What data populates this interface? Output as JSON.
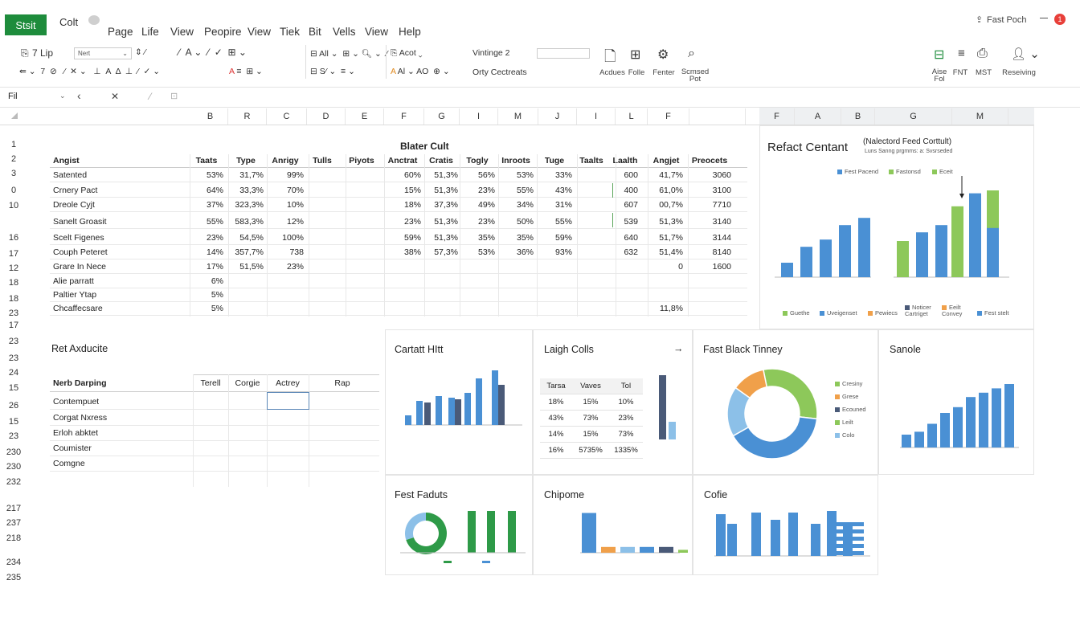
{
  "app": {
    "button": "Stsit",
    "title": "Colt"
  },
  "menu": [
    "Page",
    "Life",
    "View",
    "Peopire",
    "View",
    "Tiek",
    "Bit",
    "Vells",
    "View",
    "Help"
  ],
  "topright": {
    "label": "Fast Poch",
    "badge": "1"
  },
  "ribbon": {
    "row1": [
      "7 Lip",
      "Nert",
      "All",
      "Acot",
      "Vintinge 2"
    ],
    "row2": [
      "Orty Cectreats"
    ],
    "groups": [
      "Acdues",
      "Folle",
      "Fenter",
      "Scmsed Pot"
    ],
    "right_groups": [
      "Aise Fol",
      "FNT",
      "MST",
      "Reseiving"
    ]
  },
  "namebox": "Fil",
  "cols1": [
    "B",
    "R",
    "C",
    "D",
    "E",
    "F",
    "G",
    "I",
    "M",
    "J",
    "I",
    "L",
    "F"
  ],
  "cols2": [
    "F",
    "A",
    "B",
    "G",
    "M"
  ],
  "rows": [
    "1",
    "2",
    "3",
    "0",
    "10",
    "16",
    "17",
    "12",
    "18",
    "18",
    "23",
    "17",
    "23",
    "23",
    "24",
    "15",
    "26",
    "15",
    "23",
    "230",
    "230",
    "232",
    "217",
    "237",
    "218",
    "234",
    "235"
  ],
  "table1": {
    "title": "Blater Cult",
    "headers": [
      "Angist",
      "Taats",
      "Type",
      "Anrigy",
      "Tulls",
      "Piyots",
      "Anctrat",
      "Cratis",
      "Togly",
      "Inroots",
      "Tuge",
      "Taalts",
      "Laalth",
      "Angjet",
      "Preocets"
    ],
    "rows": [
      [
        "Satented",
        "53%",
        "31,7%",
        "99%",
        "",
        "",
        "60%",
        "51,3%",
        "56%",
        "53%",
        "33%",
        "",
        "600",
        "41,7%",
        "3060"
      ],
      [
        "Crnery Pact",
        "64%",
        "33,3%",
        "70%",
        "",
        "",
        "15%",
        "51,3%",
        "23%",
        "55%",
        "43%",
        "",
        "400",
        "61,0%",
        "3100"
      ],
      [
        "Dreole Cyjt",
        "37%",
        "323,3%",
        "10%",
        "",
        "",
        "18%",
        "37,3%",
        "49%",
        "34%",
        "31%",
        "",
        "607",
        "00,7%",
        "7710"
      ],
      [
        "Sanelt Groasit",
        "55%",
        "583,3%",
        "12%",
        "",
        "",
        "23%",
        "51,3%",
        "23%",
        "50%",
        "55%",
        "",
        "539",
        "51,3%",
        "3140"
      ],
      [
        "Scelt Figenes",
        "23%",
        "54,5%",
        "100%",
        "",
        "",
        "59%",
        "51,3%",
        "35%",
        "35%",
        "59%",
        "",
        "640",
        "51,7%",
        "3144"
      ],
      [
        "Couph Peteret",
        "14%",
        "357,7%",
        "738",
        "",
        "",
        "38%",
        "57,3%",
        "53%",
        "36%",
        "93%",
        "",
        "632",
        "51,4%",
        "8140"
      ],
      [
        "Grare In Nece",
        "17%",
        "51,5%",
        "23%",
        "",
        "",
        "",
        "",
        "",
        "",
        "",
        "",
        "",
        "0",
        "1600"
      ],
      [
        "Alie parratt",
        "6%",
        "",
        "",
        "",
        "",
        "",
        "",
        "",
        "",
        "",
        "",
        "",
        "",
        ""
      ],
      [
        "Paltier Ytap",
        "5%",
        "",
        "",
        "",
        "",
        "",
        "",
        "",
        "",
        "",
        "",
        "",
        "",
        ""
      ],
      [
        "Chcaffecsare",
        "5%",
        "",
        "",
        "",
        "",
        "",
        "",
        "",
        "",
        "",
        "",
        "",
        "11,8%",
        ""
      ]
    ]
  },
  "table2": {
    "title": "Ret Axducite",
    "headers": [
      "Nerb Darping",
      "Terell",
      "Corgie",
      "Actrey",
      "Rap"
    ],
    "rows": [
      "Contempuet",
      "Corgat Nxress",
      "Erloh abktet",
      "Coumister",
      "Comgne"
    ]
  },
  "panels": {
    "p1": {
      "title": "Refact Centant",
      "subtitle": "(Nalectord Feed Corttult)",
      "sub2": "Luns Sanng prgmms: a: Svsrseded",
      "legend": [
        "Fest Pacend",
        "Fastonsd",
        "Eceit"
      ],
      "bottom_legend": [
        "Guethe",
        "Uveigenset",
        "Pewiecs",
        "Noticer Cartriget",
        "Eeilt Convey",
        "Fest stelt"
      ]
    },
    "p2": {
      "title": "Cartatt HItt"
    },
    "p3": {
      "title": "Laigh Colls",
      "arrow": "→",
      "table": [
        [
          "Tarsa",
          "Vaves",
          "Tol"
        ],
        [
          "18%",
          "15%",
          "10%"
        ],
        [
          "43%",
          "73%",
          "23%"
        ],
        [
          "14%",
          "15%",
          "73%"
        ],
        [
          "16%",
          "5735%",
          "1335%"
        ]
      ]
    },
    "p4": {
      "title": "Fast Black Tinney",
      "legend": [
        "Cresiny",
        "Grese",
        "Ecouned",
        "Leilt",
        "Colo"
      ]
    },
    "p5": {
      "title": "Sanole"
    },
    "p6": {
      "title": "Fest Faduts"
    },
    "p7": {
      "title": "Chipome"
    },
    "p8": {
      "title": "Cofie"
    }
  },
  "colors": {
    "blue": "#4a90d4",
    "green": "#8dc85a",
    "dark": "#4a5a78",
    "orange": "#f0a04a",
    "lightblue": "#8cc0e8",
    "excel_green": "#1e8c3c",
    "darkgreen": "#2e9a48"
  },
  "chart_data": [
    {
      "type": "bar",
      "title": "Refact Centant",
      "series": [
        {
          "name": "Fest Pacend",
          "values": [
            20,
            42,
            52,
            72,
            82,
            50,
            62,
            72,
            100,
            116,
            120
          ]
        },
        {
          "name": "Fastonsd",
          "values": [
            0,
            0,
            0,
            0,
            0,
            42,
            0,
            0,
            0,
            0,
            0
          ]
        },
        {
          "name": "Eceit",
          "values": [
            0,
            0,
            0,
            0,
            0,
            0,
            0,
            0,
            98,
            0,
            68
          ]
        }
      ]
    },
    {
      "type": "bar",
      "title": "Cartatt HItt",
      "series": [
        {
          "values": [
            12,
            30,
            28,
            36,
            34,
            32,
            40,
            58,
            68,
            50
          ]
        },
        {
          "values": [
            0,
            28,
            0,
            0,
            34,
            0,
            0,
            0,
            0,
            20
          ]
        }
      ]
    },
    {
      "type": "bar",
      "title": "Sanole",
      "values": [
        40,
        44,
        55,
        70,
        78,
        92,
        98,
        104,
        110
      ]
    },
    {
      "type": "pie",
      "title": "Fast Black Tinney",
      "values": [
        30,
        12,
        6,
        18,
        34
      ]
    },
    {
      "type": "bar",
      "title": "Fest Faduts",
      "values": [
        70,
        70,
        70
      ]
    },
    {
      "type": "bar",
      "title": "Chipome",
      "values": [
        55,
        8,
        8,
        8,
        8,
        4
      ]
    },
    {
      "type": "bar",
      "title": "Cofie",
      "values": [
        60,
        40,
        60,
        45,
        60,
        40,
        60,
        45,
        40
      ]
    }
  ]
}
